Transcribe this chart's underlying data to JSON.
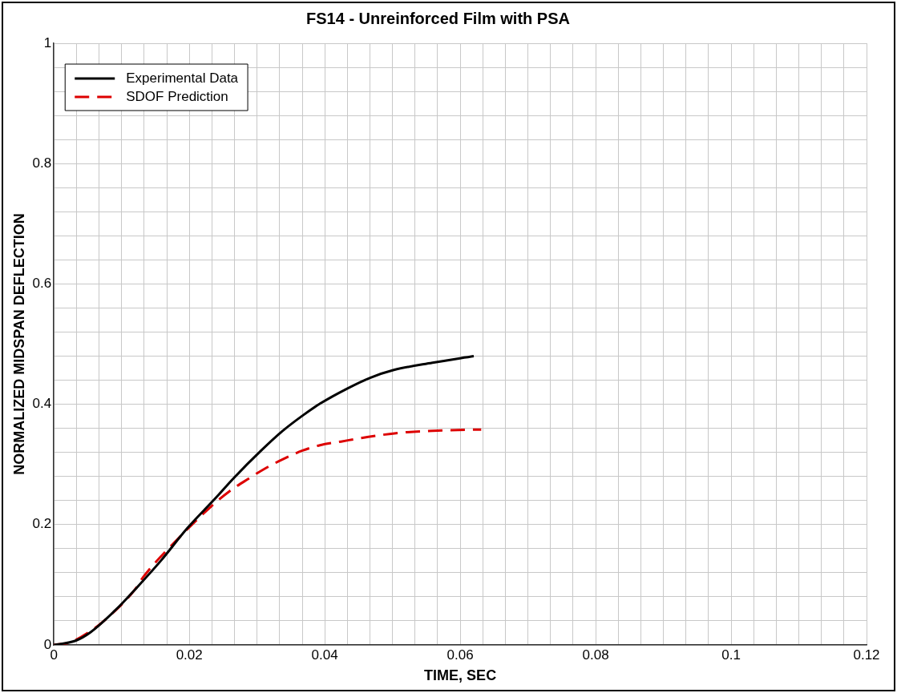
{
  "chart_data": {
    "type": "line",
    "title": "FS14 - Unreinforced Film with PSA",
    "xlabel": "TIME, SEC",
    "ylabel": "NORMALIZED MIDSPAN DEFLECTION",
    "xlim": [
      0,
      0.12
    ],
    "ylim": [
      0,
      1
    ],
    "xticks": [
      0,
      {
        "value": 0.00333,
        "label": null
      },
      {
        "value": 0.00667,
        "label": null
      },
      {
        "value": 0.01,
        "label": null
      },
      {
        "value": 0.01333,
        "label": null
      },
      {
        "value": 0.01667,
        "label": null
      },
      0.02,
      {
        "value": 0.02333,
        "label": null
      },
      {
        "value": 0.02667,
        "label": null
      },
      {
        "value": 0.03,
        "label": null
      },
      {
        "value": 0.03333,
        "label": null
      },
      {
        "value": 0.03667,
        "label": null
      },
      0.04,
      {
        "value": 0.04333,
        "label": null
      },
      {
        "value": 0.04667,
        "label": null
      },
      {
        "value": 0.05,
        "label": null
      },
      {
        "value": 0.05333,
        "label": null
      },
      {
        "value": 0.05667,
        "label": null
      },
      0.06,
      {
        "value": 0.06333,
        "label": null
      },
      {
        "value": 0.06667,
        "label": null
      },
      {
        "value": 0.07,
        "label": null
      },
      {
        "value": 0.07333,
        "label": null
      },
      {
        "value": 0.07667,
        "label": null
      },
      0.08,
      {
        "value": 0.08333,
        "label": null
      },
      {
        "value": 0.08667,
        "label": null
      },
      {
        "value": 0.09,
        "label": null
      },
      {
        "value": 0.09333,
        "label": null
      },
      {
        "value": 0.09667,
        "label": null
      },
      0.1,
      {
        "value": 0.10333,
        "label": null
      },
      {
        "value": 0.10667,
        "label": null
      },
      {
        "value": 0.11,
        "label": null
      },
      {
        "value": 0.11333,
        "label": null
      },
      {
        "value": 0.11667,
        "label": null
      },
      0.12
    ],
    "yticks": [
      0,
      {
        "value": 0.04,
        "label": null
      },
      {
        "value": 0.08,
        "label": null
      },
      {
        "value": 0.12,
        "label": null
      },
      {
        "value": 0.16,
        "label": null
      },
      0.2,
      {
        "value": 0.24,
        "label": null
      },
      {
        "value": 0.28,
        "label": null
      },
      {
        "value": 0.32,
        "label": null
      },
      {
        "value": 0.36,
        "label": null
      },
      0.4,
      {
        "value": 0.44,
        "label": null
      },
      {
        "value": 0.48,
        "label": null
      },
      {
        "value": 0.52,
        "label": null
      },
      {
        "value": 0.56,
        "label": null
      },
      0.6,
      {
        "value": 0.64,
        "label": null
      },
      {
        "value": 0.68,
        "label": null
      },
      {
        "value": 0.72,
        "label": null
      },
      {
        "value": 0.76,
        "label": null
      },
      0.8,
      {
        "value": 0.84,
        "label": null
      },
      {
        "value": 0.88,
        "label": null
      },
      {
        "value": 0.92,
        "label": null
      },
      {
        "value": 0.96,
        "label": null
      },
      1
    ],
    "grid": true,
    "legend": "top left",
    "marker": "none",
    "series": [
      {
        "name": "Experimental Data",
        "color": "#000000",
        "line_style": "solid",
        "x": [
          0,
          0.0032,
          0.0054,
          0.0091,
          0.0123,
          0.0158,
          0.0197,
          0.0237,
          0.0267,
          0.0306,
          0.0337,
          0.0367,
          0.0393,
          0.0433,
          0.0467,
          0.0502,
          0.0559,
          0.062
        ],
        "values": [
          0,
          0.007,
          0.021,
          0.058,
          0.096,
          0.14,
          0.194,
          0.242,
          0.279,
          0.323,
          0.355,
          0.381,
          0.401,
          0.426,
          0.444,
          0.457,
          0.469,
          0.48
        ]
      },
      {
        "name": "SDOF Prediction",
        "color": "#dd0000",
        "line_style": "dashed",
        "x": [
          0,
          0.0023,
          0.0058,
          0.0082,
          0.0119,
          0.0132,
          0.0182,
          0.0232,
          0.026,
          0.0287,
          0.0313,
          0.0339,
          0.0367,
          0.0393,
          0.0424,
          0.0454,
          0.0484,
          0.0515,
          0.0559,
          0.0631
        ],
        "values": [
          0,
          0.004,
          0.026,
          0.048,
          0.091,
          0.113,
          0.175,
          0.23,
          0.256,
          0.276,
          0.294,
          0.309,
          0.323,
          0.332,
          0.338,
          0.344,
          0.349,
          0.353,
          0.356,
          0.358
        ]
      }
    ]
  }
}
